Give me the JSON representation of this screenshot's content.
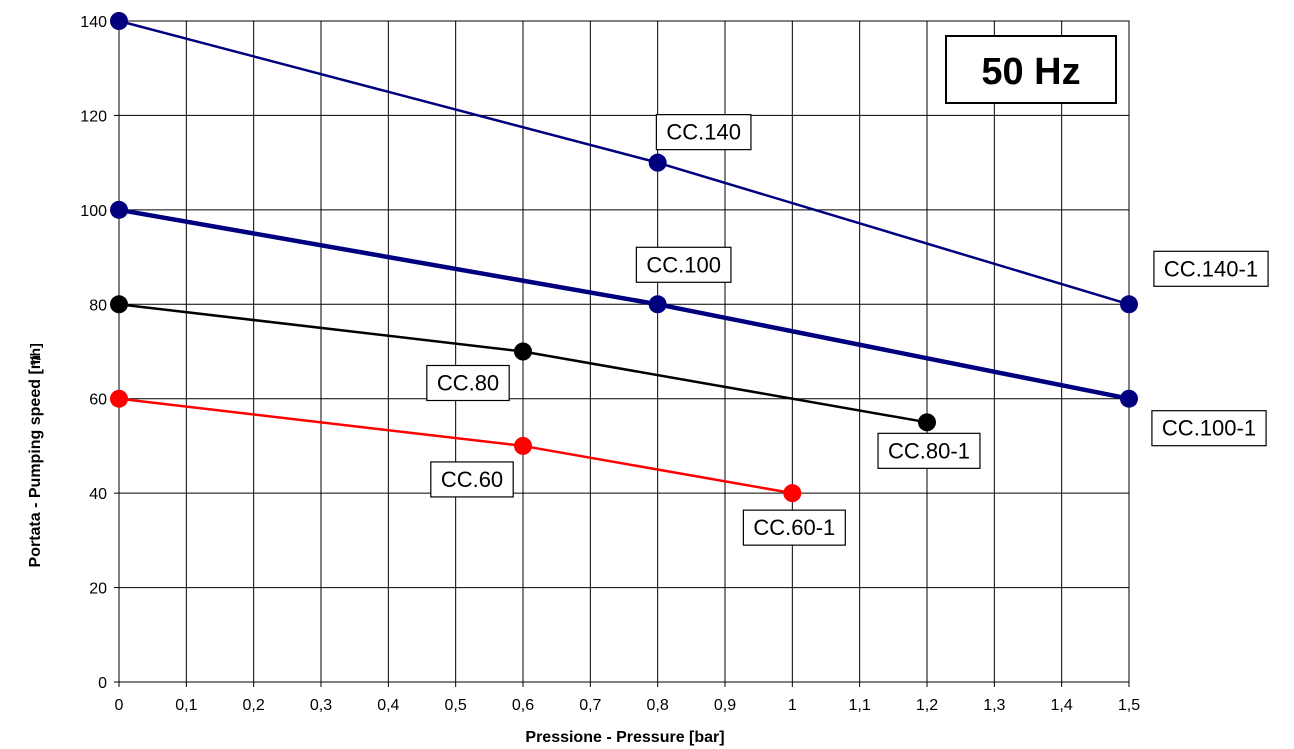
{
  "chart_data": {
    "type": "line",
    "xlabel": "Pressione - Pressure  [bar]",
    "ylabel": "Portata - Pumping speed [m",
    "ylabel_unit": "³/h]",
    "xlim": [
      0,
      1.5
    ],
    "ylim": [
      0,
      140
    ],
    "x_ticks": [
      "0",
      "0,1",
      "0,2",
      "0,3",
      "0,4",
      "0,5",
      "0,6",
      "0,7",
      "0,8",
      "0,9",
      "1",
      "1,1",
      "1,2",
      "1,3",
      "1,4",
      "1,5"
    ],
    "y_ticks": [
      "0",
      "20",
      "40",
      "60",
      "80",
      "100",
      "120",
      "140"
    ],
    "grid": true,
    "annotation": "50 Hz",
    "series": [
      {
        "color": "#00007f",
        "points": [
          {
            "x": 0,
            "y": 140
          },
          {
            "x": 0.8,
            "y": 110
          },
          {
            "x": 1.5,
            "y": 80
          }
        ],
        "labels": [
          {
            "text": "CC.140",
            "x": 0.8,
            "y": 110
          },
          {
            "text": "CC.140-1",
            "x": 1.5,
            "y": 80
          }
        ]
      },
      {
        "color": "#00007f",
        "thick": true,
        "points": [
          {
            "x": 0,
            "y": 100
          },
          {
            "x": 0.8,
            "y": 80
          },
          {
            "x": 1.5,
            "y": 60
          }
        ],
        "labels": [
          {
            "text": "CC.100",
            "x": 0.8,
            "y": 80
          },
          {
            "text": "CC.100-1",
            "x": 1.5,
            "y": 60
          }
        ]
      },
      {
        "color": "#000000",
        "points": [
          {
            "x": 0,
            "y": 80
          },
          {
            "x": 0.6,
            "y": 70
          },
          {
            "x": 1.2,
            "y": 55
          }
        ],
        "labels": [
          {
            "text": "CC.80",
            "x": 0.6,
            "y": 70
          },
          {
            "text": "CC.80-1",
            "x": 1.2,
            "y": 55
          }
        ]
      },
      {
        "color": "#ff0000",
        "points": [
          {
            "x": 0,
            "y": 60
          },
          {
            "x": 0.6,
            "y": 50
          },
          {
            "x": 1,
            "y": 40
          }
        ],
        "labels": [
          {
            "text": "CC.60",
            "x": 0.6,
            "y": 50
          },
          {
            "text": "CC.60-1",
            "x": 1,
            "y": 40
          }
        ]
      }
    ]
  }
}
